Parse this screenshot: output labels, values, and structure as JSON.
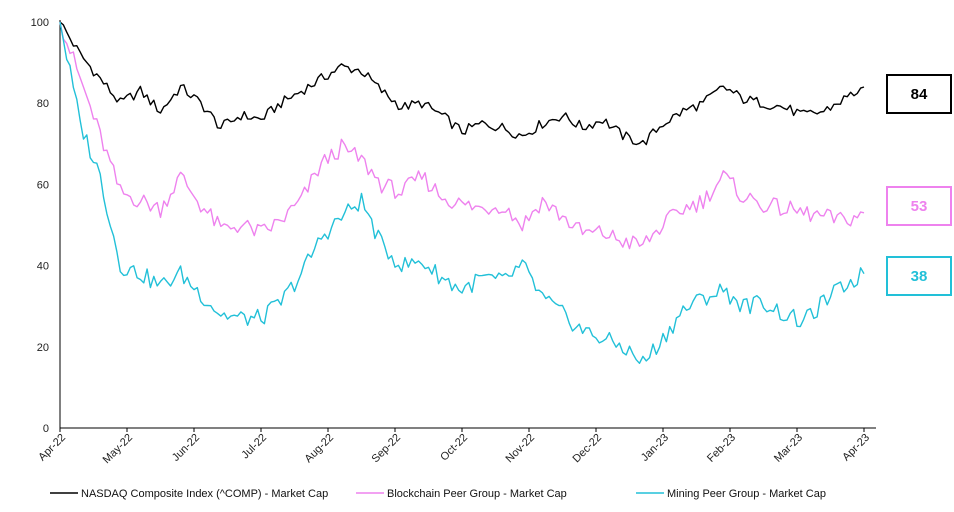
{
  "chart_data": {
    "type": "line",
    "ylim": [
      0,
      100
    ],
    "y_ticks": [
      "0",
      "20",
      "40",
      "60",
      "80",
      "100"
    ],
    "x_ticks": [
      "Apr-22",
      "May-22",
      "Jun-22",
      "Jul-22",
      "Aug-22",
      "Sep-22",
      "Oct-22",
      "Nov-22",
      "Dec-22",
      "Jan-23",
      "Feb-23",
      "Mar-23",
      "Apr-23"
    ],
    "grid": false,
    "legend_position": "bottom",
    "series": [
      {
        "name": "NASDAQ Composite Index (^COMP) - Market Cap",
        "color": "#000000",
        "end_label": "84",
        "values": [
          100,
          92,
          86,
          80,
          83,
          78,
          84,
          80,
          74,
          77,
          76,
          80,
          83,
          86,
          89,
          88,
          83,
          79,
          80,
          77,
          73,
          75,
          74,
          72,
          75,
          77,
          74,
          76,
          72,
          70,
          75,
          78,
          80,
          84,
          81,
          80,
          79,
          77,
          78,
          81,
          84
        ]
      },
      {
        "name": "Blockchain Peer Group - Market Cap",
        "color": "#ee82ee",
        "end_label": "53",
        "values": [
          100,
          86,
          72,
          58,
          56,
          54,
          62,
          55,
          49,
          50,
          48,
          51,
          56,
          65,
          69,
          66,
          60,
          58,
          62,
          57,
          55,
          54,
          55,
          50,
          56,
          52,
          48,
          48,
          46,
          45,
          50,
          54,
          56,
          62,
          57,
          55,
          54,
          53,
          52,
          51,
          53
        ]
      },
      {
        "name": "Mining Peer Group - Market Cap",
        "color": "#22c0d8",
        "end_label": "38",
        "values": [
          100,
          75,
          62,
          40,
          38,
          35,
          38,
          33,
          28,
          27,
          27,
          31,
          38,
          47,
          52,
          56,
          45,
          40,
          41,
          37,
          34,
          37,
          36,
          40,
          32,
          28,
          24,
          22,
          20,
          16,
          22,
          29,
          32,
          34,
          30,
          31,
          28,
          26,
          31,
          35,
          38
        ]
      }
    ]
  }
}
